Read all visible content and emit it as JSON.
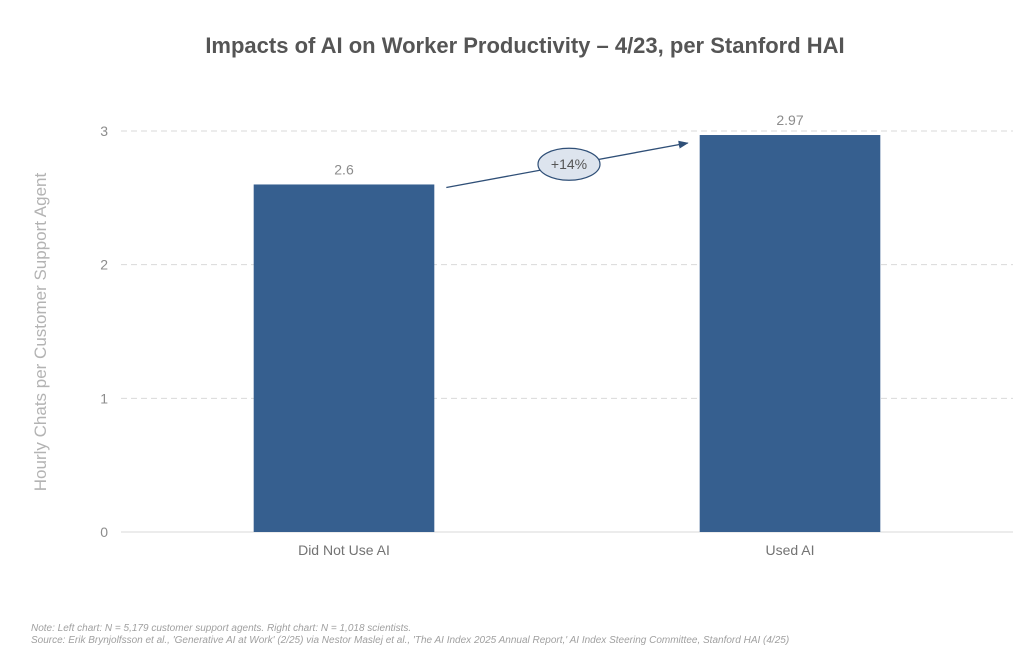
{
  "chart_data": {
    "type": "bar",
    "title": "Impacts of AI on Worker Productivity – 4/23, per Stanford HAI",
    "ylabel": "Hourly Chats per Customer Support Agent",
    "xlabel": "",
    "categories": [
      "Did Not Use AI",
      "Used AI"
    ],
    "values": [
      2.6,
      2.97
    ],
    "data_labels": [
      "2.6",
      "2.97"
    ],
    "ylim": [
      0,
      3.0
    ],
    "yticks": [
      0,
      1,
      2,
      3
    ],
    "grid": true,
    "legend": "none",
    "annotations": [
      {
        "text": "+14%",
        "type": "arrow-callout",
        "from": "Did Not Use AI",
        "to": "Used AI"
      }
    ],
    "colors": {
      "bar": "#365f8f",
      "grid": "#d9d9d9",
      "axis_text": "#8c8c8c",
      "callout_fill": "#dde4ee",
      "callout_stroke": "#2f4f77"
    }
  },
  "footer": {
    "note": "Note: Left chart: N = 5,179 customer support agents. Right chart: N = 1,018 scientists.",
    "source": "Source: Erik Brynjolfsson et al., 'Generative AI at Work' (2/25) via Nestor Maslej et al., 'The AI Index 2025 Annual Report,' AI Index Steering Committee, Stanford HAI (4/25)"
  }
}
